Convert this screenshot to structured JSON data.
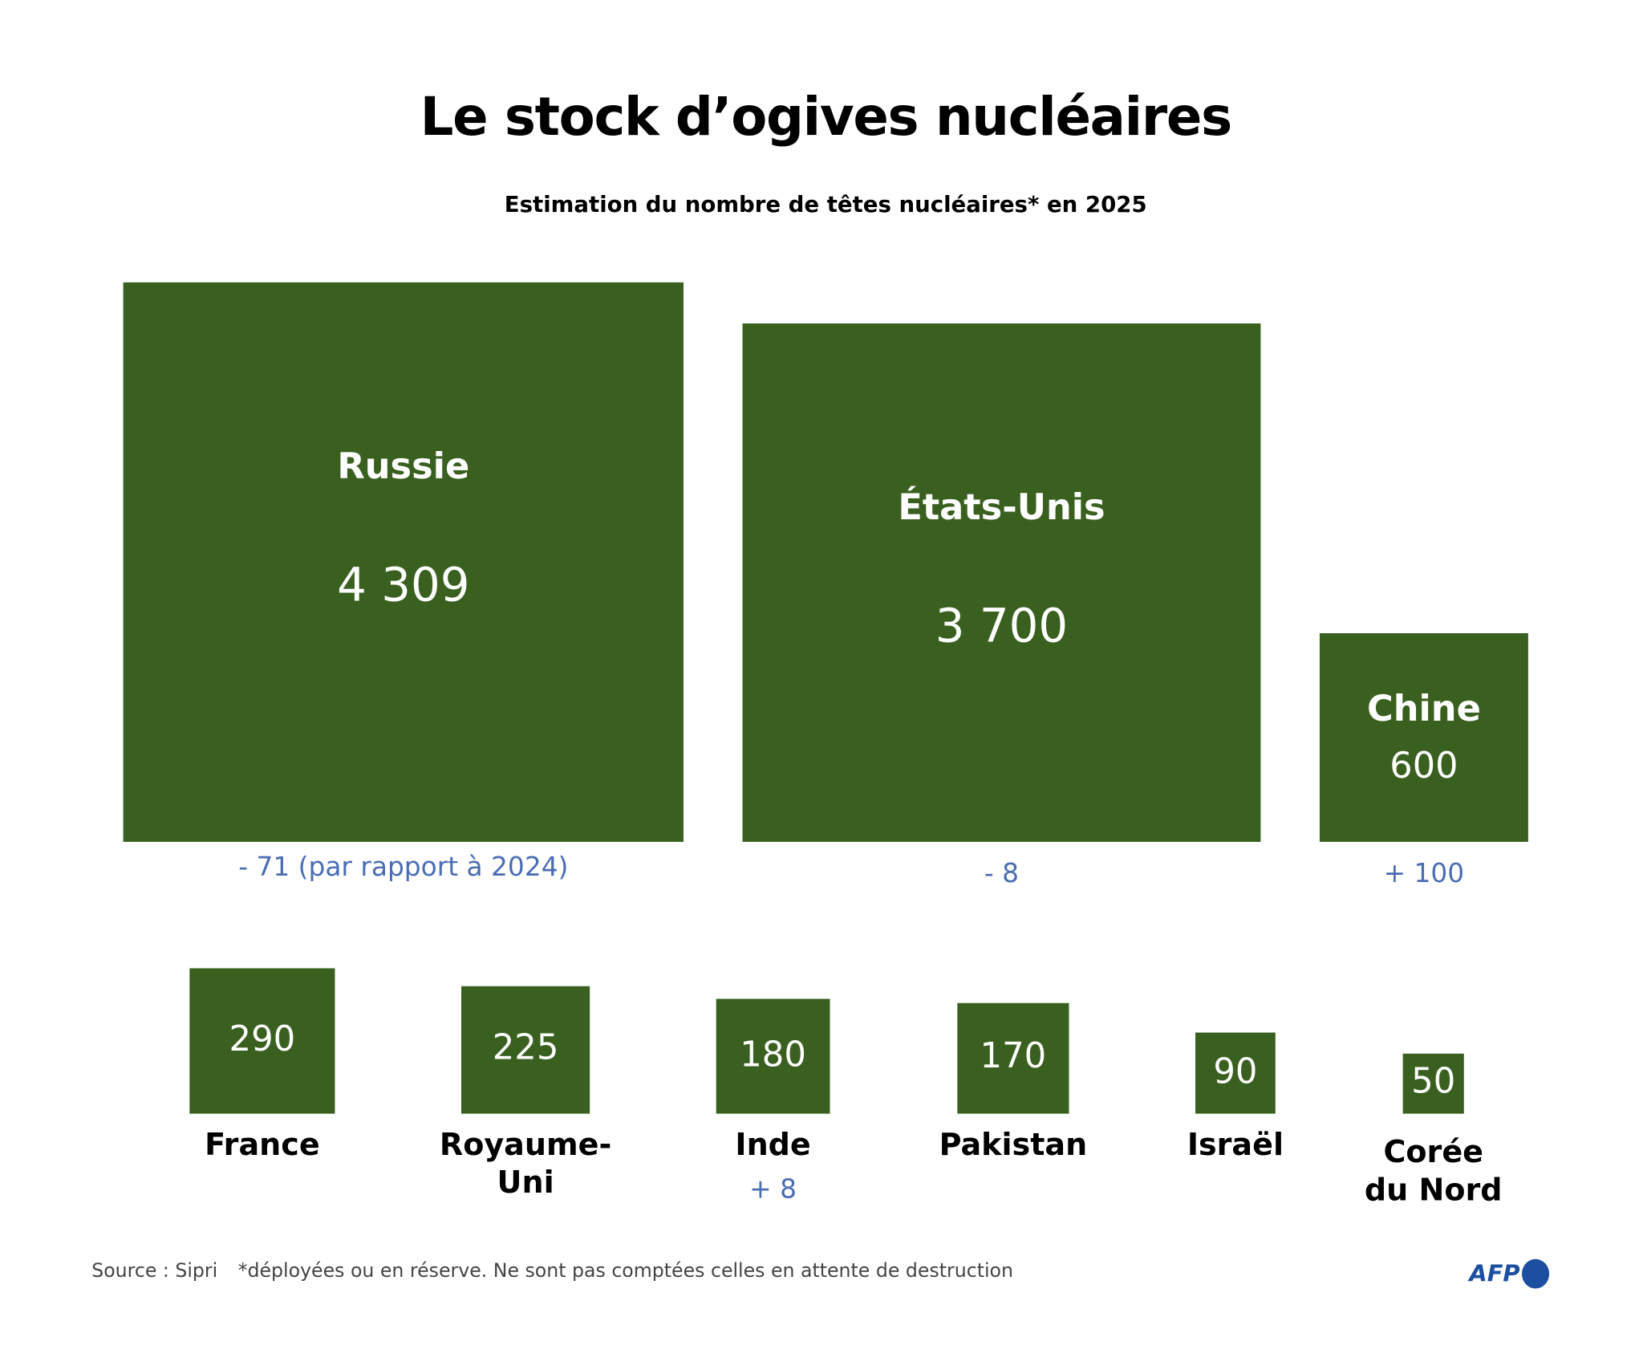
{
  "title": "Le stock d’ogives nucléaires",
  "subtitle": "Estimation du nombre de têtes nucléaires* en 2025",
  "colors": {
    "bar": "#3a6020",
    "change": "#4a6db3",
    "logo": "#1d4fa0"
  },
  "chart_data": {
    "type": "proportional-area squares",
    "title": "Le stock d’ogives nucléaires",
    "subtitle": "Estimation du nombre de têtes nucléaires* en 2025",
    "countries": [
      {
        "name": "Russie",
        "value": 4309,
        "value_label": "4 309",
        "change": "- 71 (par rapport à 2024)"
      },
      {
        "name": "États-Unis",
        "value": 3700,
        "value_label": "3 700",
        "change": "- 8"
      },
      {
        "name": "Chine",
        "value": 600,
        "value_label": "600",
        "change": "+ 100"
      },
      {
        "name": "France",
        "value": 290,
        "value_label": "290",
        "change": ""
      },
      {
        "name": "Royaume-\nUni",
        "value": 225,
        "value_label": "225",
        "change": ""
      },
      {
        "name": "Inde",
        "value": 180,
        "value_label": "180",
        "change": "+ 8"
      },
      {
        "name": "Pakistan",
        "value": 170,
        "value_label": "170",
        "change": ""
      },
      {
        "name": "Israël",
        "value": 90,
        "value_label": "90",
        "change": ""
      },
      {
        "name": "Corée\ndu Nord",
        "value": 50,
        "value_label": "50",
        "change": ""
      }
    ]
  },
  "footer": {
    "source": "Source : Sipri",
    "note": "*déployées ou en réserve. Ne sont pas comptées celles en attente de destruction",
    "logo": "AFP"
  }
}
